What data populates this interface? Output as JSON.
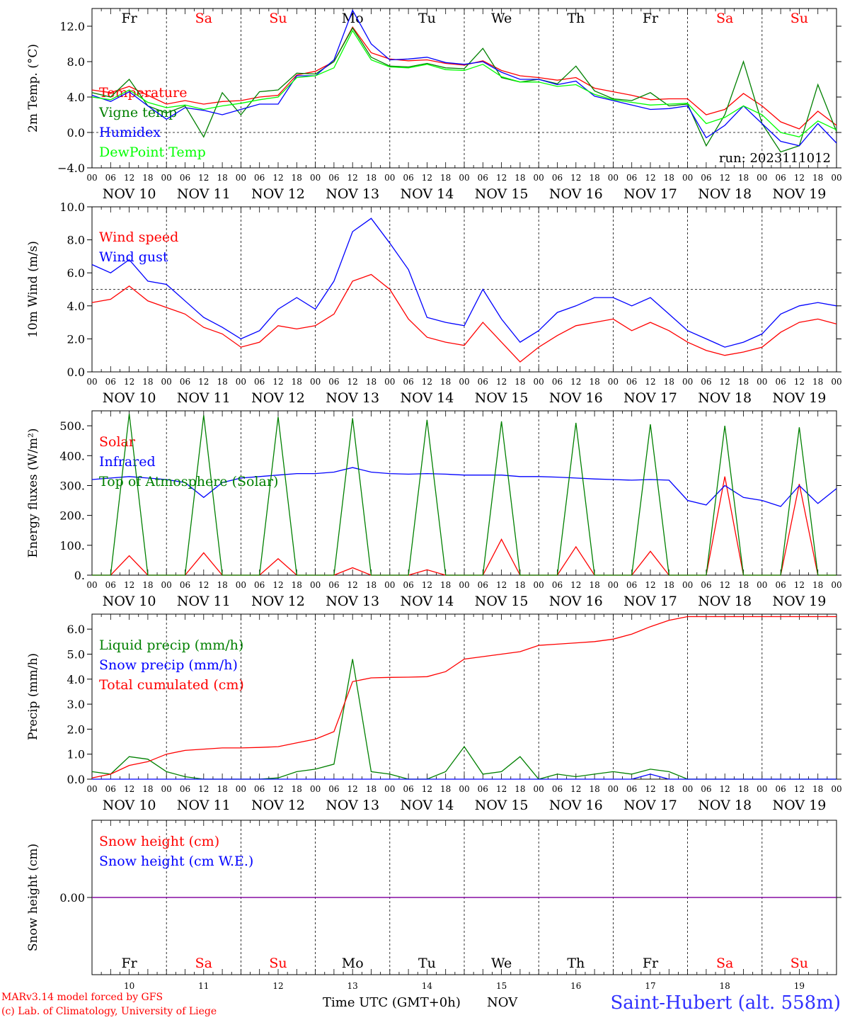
{
  "days": {
    "weekdays": [
      "Fr",
      "Sa",
      "Su",
      "Mo",
      "Tu",
      "We",
      "Th",
      "Fr",
      "Sa",
      "Su"
    ],
    "weekday_colors": [
      "#000000",
      "#ff0000",
      "#ff0000",
      "#000000",
      "#000000",
      "#000000",
      "#000000",
      "#000000",
      "#ff0000",
      "#ff0000"
    ],
    "date_labels": [
      "NOV 10",
      "NOV 11",
      "NOV 12",
      "NOV 13",
      "NOV 14",
      "NOV 15",
      "NOV 16",
      "NOV 17",
      "NOV 18",
      "NOV 19"
    ],
    "hour_ticks": [
      "00",
      "06",
      "12",
      "18"
    ],
    "end_tick": "00",
    "day_numbers": [
      "10",
      "11",
      "12",
      "13",
      "14",
      "15",
      "16",
      "17",
      "18",
      "19"
    ]
  },
  "footer": {
    "model": "MARv3.14 model forced by GFS",
    "lab": "(c) Lab. of Climatology, University of Liege",
    "time_label": "Time UTC (GMT+0h)",
    "month": "NOV",
    "station": "Saint-Hubert (alt. 558m)"
  },
  "colors": {
    "red": "#ff0000",
    "green": "#008000",
    "blue": "#0000ff",
    "lime": "#00ff00",
    "purple": "#8000a0"
  },
  "chart_data": [
    {
      "type": "line",
      "ylabel": "2m Temp. (°C)",
      "x_hours": [
        0,
        6,
        12,
        18,
        24,
        30,
        36,
        42,
        48,
        54,
        60,
        66,
        72,
        78,
        84,
        90,
        96,
        102,
        108,
        114,
        120,
        126,
        132,
        138,
        144,
        150,
        156,
        162,
        168,
        174,
        180,
        186,
        192,
        198,
        204,
        210,
        216,
        222,
        228,
        234,
        240
      ],
      "ylim": [
        -4,
        14
      ],
      "yticks": [
        "12.0",
        "8.0",
        "4.0",
        "0.0",
        "−4.0"
      ],
      "ytick_values": [
        12,
        8,
        4,
        0,
        -4
      ],
      "ref_line": 0,
      "annotation": "run: 2023111012",
      "series": [
        {
          "name": "Temperature",
          "color": "#ff0000",
          "values": [
            4.8,
            4.5,
            5.2,
            4.2,
            3.2,
            3.6,
            3.2,
            3.5,
            3.6,
            4.0,
            4.2,
            6.5,
            6.9,
            8.0,
            11.9,
            9.0,
            8.3,
            8.1,
            8.2,
            7.8,
            7.6,
            8.1,
            7.0,
            6.4,
            6.2,
            5.9,
            6.2,
            5.0,
            4.6,
            4.2,
            3.7,
            3.8,
            3.8,
            2.0,
            2.6,
            4.4,
            3.0,
            1.2,
            0.4,
            2.4,
            0.8
          ]
        },
        {
          "name": "Vigne temp",
          "color": "#008000",
          "values": [
            4.5,
            4.0,
            6.0,
            3.0,
            2.2,
            3.0,
            -0.5,
            4.5,
            2.0,
            4.6,
            4.8,
            6.7,
            6.6,
            8.0,
            11.8,
            8.5,
            7.5,
            7.4,
            7.8,
            7.3,
            7.2,
            9.5,
            6.2,
            5.7,
            6.0,
            5.5,
            7.5,
            4.7,
            3.8,
            3.6,
            4.5,
            3.0,
            3.2,
            -1.5,
            2.0,
            8.0,
            1.0,
            -2.2,
            -1.5,
            5.4,
            0.1
          ]
        },
        {
          "name": "Humidex",
          "color": "#0000ff",
          "values": [
            4.2,
            3.5,
            4.6,
            3.0,
            1.5,
            2.8,
            2.5,
            2.0,
            2.6,
            3.2,
            3.2,
            6.4,
            6.4,
            8.2,
            13.8,
            10.0,
            8.2,
            8.3,
            8.5,
            7.9,
            7.7,
            8.0,
            6.8,
            6.0,
            6.0,
            5.4,
            5.8,
            4.1,
            3.6,
            3.1,
            2.6,
            2.7,
            3.0,
            -0.6,
            0.8,
            3.0,
            1.0,
            -1.0,
            -1.5,
            1.0,
            -1.2
          ]
        },
        {
          "name": "DewPoint Temp",
          "color": "#00ff00",
          "values": [
            4.0,
            3.7,
            4.8,
            3.4,
            2.8,
            3.1,
            2.6,
            3.0,
            3.3,
            3.7,
            4.0,
            6.2,
            6.4,
            7.3,
            11.5,
            8.2,
            7.4,
            7.3,
            7.7,
            7.1,
            7.0,
            7.7,
            6.3,
            5.7,
            5.7,
            5.2,
            5.4,
            4.3,
            3.7,
            3.4,
            3.1,
            3.2,
            3.3,
            1.0,
            1.7,
            3.0,
            2.0,
            0.0,
            -0.5,
            1.3,
            0.3
          ]
        }
      ]
    },
    {
      "type": "line",
      "ylabel": "10m Wind (m/s)",
      "x_hours": [
        0,
        6,
        12,
        18,
        24,
        30,
        36,
        42,
        48,
        54,
        60,
        66,
        72,
        78,
        84,
        90,
        96,
        102,
        108,
        114,
        120,
        126,
        132,
        138,
        144,
        150,
        156,
        162,
        168,
        174,
        180,
        186,
        192,
        198,
        204,
        210,
        216,
        222,
        228,
        234,
        240
      ],
      "ylim": [
        0,
        10
      ],
      "yticks": [
        "10.0",
        "8.0",
        "6.0",
        "4.0",
        "2.0",
        "0.0"
      ],
      "ytick_values": [
        10,
        8,
        6,
        4,
        2,
        0
      ],
      "ref_line": 5,
      "series": [
        {
          "name": "Wind speed",
          "color": "#ff0000",
          "values": [
            4.2,
            4.4,
            5.2,
            4.3,
            3.9,
            3.5,
            2.7,
            2.3,
            1.5,
            1.8,
            2.8,
            2.6,
            2.8,
            3.5,
            5.5,
            5.9,
            5.0,
            3.2,
            2.1,
            1.8,
            1.6,
            3.0,
            1.8,
            0.6,
            1.5,
            2.2,
            2.8,
            3.0,
            3.2,
            2.5,
            3.0,
            2.5,
            1.8,
            1.3,
            1.0,
            1.2,
            1.5,
            2.4,
            3.0,
            3.2,
            2.9
          ]
        },
        {
          "name": "Wind gust",
          "color": "#0000ff",
          "values": [
            6.5,
            6.0,
            6.8,
            5.5,
            5.3,
            4.3,
            3.3,
            2.7,
            2.0,
            2.5,
            3.8,
            4.5,
            3.8,
            5.5,
            8.5,
            9.3,
            7.8,
            6.2,
            3.3,
            3.0,
            2.8,
            5.0,
            3.2,
            1.8,
            2.5,
            3.6,
            4.0,
            4.5,
            4.5,
            4.0,
            4.5,
            3.5,
            2.5,
            2.0,
            1.5,
            1.8,
            2.3,
            3.5,
            4.0,
            4.2,
            4.0
          ]
        }
      ]
    },
    {
      "type": "line",
      "ylabel": "Energy fluxes (W/m²)",
      "x_hours": [
        0,
        6,
        12,
        18,
        24,
        30,
        36,
        42,
        48,
        54,
        60,
        66,
        72,
        78,
        84,
        90,
        96,
        102,
        108,
        114,
        120,
        126,
        132,
        138,
        144,
        150,
        156,
        162,
        168,
        174,
        180,
        186,
        192,
        198,
        204,
        210,
        216,
        222,
        228,
        234,
        240
      ],
      "ylim": [
        0,
        550
      ],
      "yticks": [
        "500.",
        "400.",
        "300.",
        "200.",
        "100.",
        "0."
      ],
      "ytick_values": [
        500,
        400,
        300,
        200,
        100,
        0
      ],
      "series": [
        {
          "name": "Solar",
          "color": "#ff0000",
          "values": [
            0,
            0,
            65,
            0,
            0,
            0,
            75,
            0,
            0,
            0,
            55,
            0,
            0,
            0,
            25,
            0,
            0,
            0,
            18,
            0,
            0,
            0,
            120,
            0,
            0,
            0,
            95,
            0,
            0,
            0,
            80,
            0,
            0,
            0,
            330,
            0,
            0,
            0,
            305,
            0,
            0
          ]
        },
        {
          "name": "Infrared",
          "color": "#0000ff",
          "values": [
            320,
            325,
            330,
            325,
            320,
            310,
            260,
            310,
            325,
            330,
            335,
            340,
            340,
            345,
            360,
            345,
            340,
            338,
            340,
            338,
            335,
            335,
            335,
            330,
            330,
            328,
            325,
            322,
            320,
            318,
            320,
            318,
            250,
            235,
            300,
            260,
            250,
            230,
            300,
            240,
            290
          ]
        },
        {
          "name": "Top of Atmosphere (Solar)",
          "color": "#008000",
          "values": [
            0,
            0,
            540,
            0,
            0,
            0,
            535,
            0,
            0,
            0,
            530,
            0,
            0,
            0,
            525,
            0,
            0,
            0,
            520,
            0,
            0,
            0,
            515,
            0,
            0,
            0,
            510,
            0,
            0,
            0,
            505,
            0,
            0,
            0,
            500,
            0,
            0,
            0,
            495,
            0,
            0
          ]
        }
      ]
    },
    {
      "type": "line",
      "ylabel": "Precip (mm/h)",
      "x_hours": [
        0,
        6,
        12,
        18,
        24,
        30,
        36,
        42,
        48,
        54,
        60,
        66,
        72,
        78,
        84,
        90,
        96,
        102,
        108,
        114,
        120,
        126,
        132,
        138,
        144,
        150,
        156,
        162,
        168,
        174,
        180,
        186,
        192,
        198,
        204,
        210,
        216,
        222,
        228,
        234,
        240
      ],
      "ylim": [
        0,
        6.6
      ],
      "yticks": [
        "6.0",
        "5.0",
        "4.0",
        "3.0",
        "2.0",
        "1.0",
        "0.0"
      ],
      "ytick_values": [
        6,
        5,
        4,
        3,
        2,
        1,
        0
      ],
      "series": [
        {
          "name": "Liquid precip (mm/h)",
          "color": "#008000",
          "values": [
            0.3,
            0.2,
            0.9,
            0.8,
            0.3,
            0.1,
            0.0,
            0.0,
            0.0,
            0.0,
            0.05,
            0.3,
            0.4,
            0.6,
            4.8,
            0.3,
            0.2,
            0.0,
            0.0,
            0.3,
            1.3,
            0.2,
            0.3,
            0.9,
            0.0,
            0.2,
            0.1,
            0.2,
            0.3,
            0.2,
            0.4,
            0.3,
            0.0,
            0.0,
            0.0,
            0.0,
            0.0,
            0.0,
            0.0,
            0.0,
            0.0
          ]
        },
        {
          "name": "Snow precip (mm/h)",
          "color": "#0000ff",
          "values": [
            0,
            0,
            0,
            0,
            0,
            0,
            0,
            0,
            0,
            0,
            0,
            0,
            0,
            0,
            0,
            0,
            0,
            0,
            0,
            0,
            0,
            0,
            0,
            0,
            0,
            0,
            0,
            0,
            0,
            0,
            0.2,
            0,
            0,
            0,
            0,
            0,
            0,
            0,
            0,
            0,
            0
          ]
        },
        {
          "name": "Total cumulated (cm)",
          "color": "#ff0000",
          "values": [
            0.05,
            0.2,
            0.55,
            0.7,
            1.0,
            1.15,
            1.2,
            1.25,
            1.25,
            1.27,
            1.3,
            1.45,
            1.6,
            1.9,
            3.9,
            4.05,
            4.07,
            4.08,
            4.1,
            4.3,
            4.8,
            4.9,
            5.0,
            5.1,
            5.35,
            5.4,
            5.45,
            5.5,
            5.6,
            5.8,
            6.1,
            6.35,
            6.5,
            6.5,
            6.5,
            6.5,
            6.5,
            6.5,
            6.5,
            6.5,
            6.5
          ]
        }
      ]
    },
    {
      "type": "line",
      "ylabel": "Snow height (cm)",
      "x_hours": [
        0,
        240
      ],
      "ylim": [
        -1,
        1
      ],
      "yticks": [
        "0.00"
      ],
      "ytick_values": [
        0
      ],
      "series": [
        {
          "name": "Snow height (cm)",
          "color": "#ff0000",
          "values": [
            0,
            0
          ]
        },
        {
          "name": "Snow height (cm W.E.)",
          "color": "#0000ff",
          "values": [
            0,
            0
          ]
        }
      ]
    }
  ]
}
